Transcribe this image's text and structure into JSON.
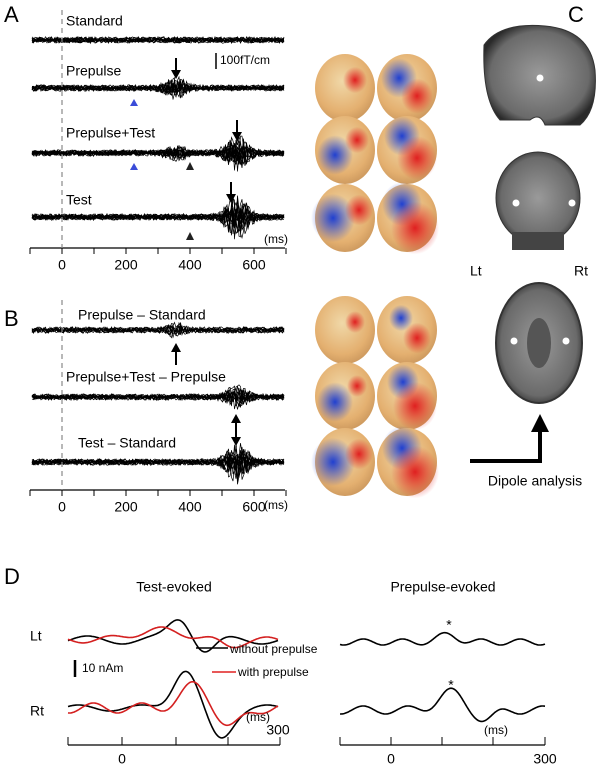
{
  "panels": {
    "a": {
      "label": "A",
      "traces": [
        "Standard",
        "Prepulse",
        "Prepulse+Test",
        "Test"
      ],
      "scale_bar": "100fT/cm",
      "x_ticks": [
        "0",
        "200",
        "400",
        "600"
      ],
      "x_unit": "(ms)"
    },
    "b": {
      "label": "B",
      "traces": [
        "Prepulse – Standard",
        "Prepulse+Test – Prepulse",
        "Test – Standard"
      ],
      "x_ticks": [
        "0",
        "200",
        "400",
        "600"
      ],
      "x_unit": "(ms)"
    },
    "c": {
      "label": "C",
      "left": "Lt",
      "right": "Rt",
      "caption": "Dipole analysis"
    },
    "d": {
      "label": "D",
      "left_title": "Test-evoked",
      "right_title": "Prepulse-evoked",
      "rows": [
        "Lt",
        "Rt"
      ],
      "scale_bar": "10 nAm",
      "legend": [
        "without prepulse",
        "with prepulse"
      ],
      "marker": "*",
      "x_ticks": [
        "0",
        "300"
      ],
      "x_unit": "(ms)"
    }
  }
}
